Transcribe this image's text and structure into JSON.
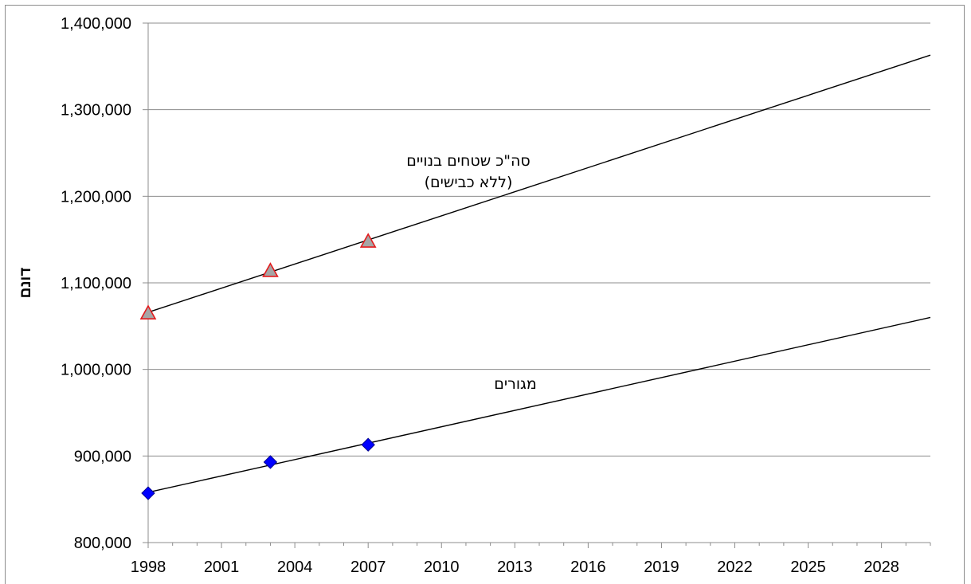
{
  "chart_data": {
    "type": "scatter",
    "ylabel": "דונם",
    "xlabel": "",
    "xlim": [
      1998,
      2030
    ],
    "ylim": [
      800000,
      1400000
    ],
    "x_ticks": [
      1998,
      2001,
      2004,
      2007,
      2010,
      2013,
      2016,
      2019,
      2022,
      2025,
      2028
    ],
    "y_ticks": [
      800000,
      900000,
      1000000,
      1100000,
      1200000,
      1300000,
      1400000
    ],
    "x_tick_labels": [
      "1998",
      "2001",
      "2004",
      "2007",
      "2010",
      "2013",
      "2016",
      "2019",
      "2022",
      "2025",
      "2028"
    ],
    "y_tick_labels": [
      "800,000",
      "900,000",
      "1,000,000",
      "1,100,000",
      "1,200,000",
      "1,300,000",
      "1,400,000"
    ],
    "grid": "horizontal",
    "series": [
      {
        "marker": "triangle",
        "fill": "#a6a6a6",
        "stroke": "#e31a1c",
        "points": [
          [
            1998,
            1065000
          ],
          [
            2003,
            1114000
          ],
          [
            2007,
            1148000
          ]
        ],
        "trendline": [
          [
            1998,
            1066000
          ],
          [
            2030,
            1363000
          ]
        ],
        "annotation": [
          "סה\"כ שטחים בנויים",
          "(ללא כבישים)"
        ]
      },
      {
        "marker": "diamond",
        "fill": "#0000ff",
        "stroke": "#00008b",
        "points": [
          [
            1998,
            857000
          ],
          [
            2003,
            893000
          ],
          [
            2007,
            913000
          ]
        ],
        "trendline": [
          [
            1998,
            858000
          ],
          [
            2030,
            1060000
          ]
        ],
        "annotation": [
          "מגורים"
        ]
      }
    ]
  }
}
